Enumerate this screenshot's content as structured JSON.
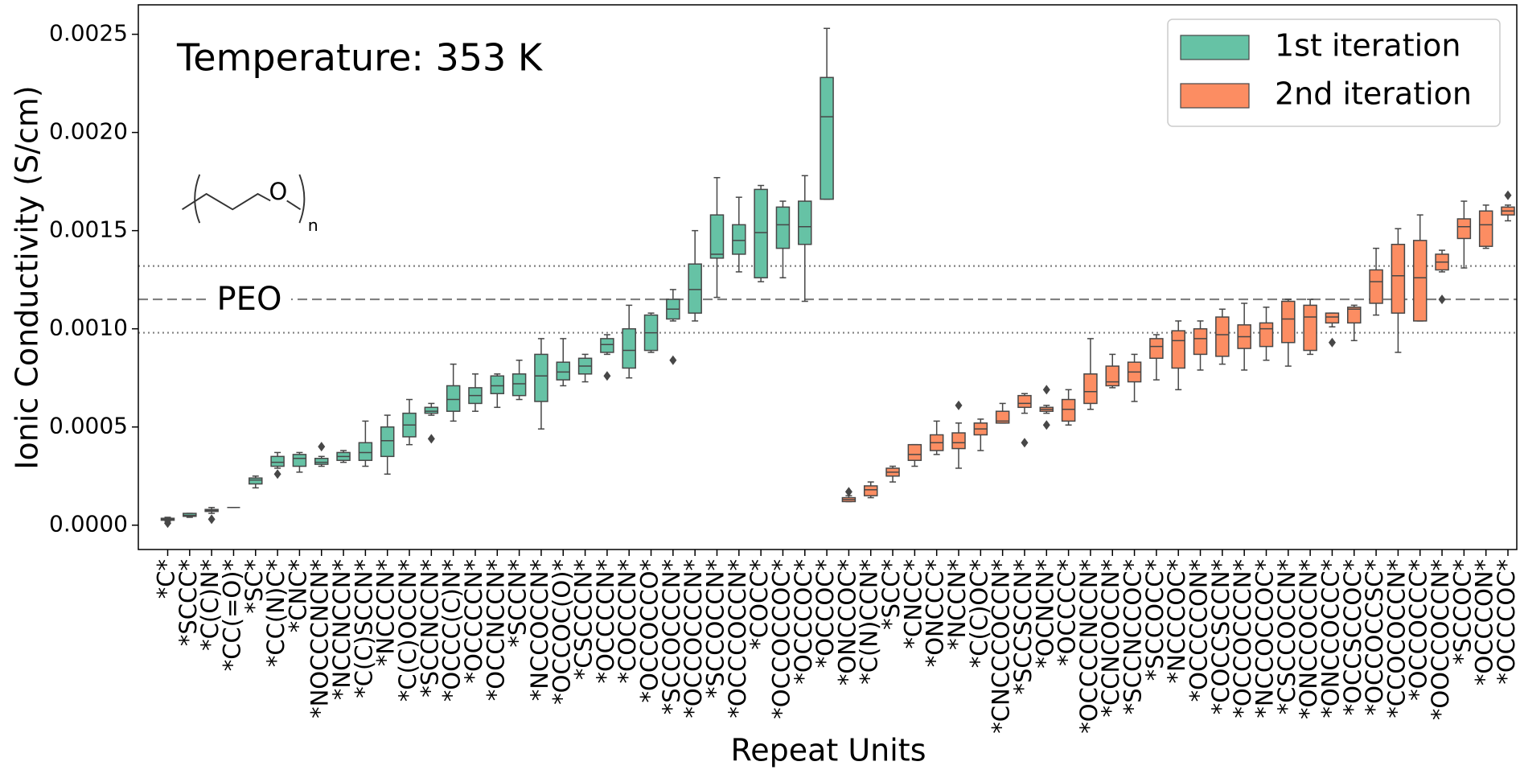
{
  "chart_data": {
    "type": "box",
    "title": "Temperature: 353 K",
    "x_label": "Repeat Units",
    "y_label": "Ionic Conductivity (S/cm)",
    "structure": {
      "atom": "O",
      "subscript": "n"
    },
    "categories": [
      "*C*",
      "*SCCC*",
      "*C(C)N*",
      "*CC(=O)*",
      "*SC*",
      "*CC(N)C*",
      "*CNC*",
      "*NOCCCNCN*",
      "*NCCNCCN*",
      "*C(C)SCCN*",
      "*NCCCN*",
      "*C(C)OCCN*",
      "*SCCNCCN*",
      "*OCCC(C)N*",
      "*OCCCCN*",
      "*OCCNCCN*",
      "*SCCN*",
      "*NCCOCCN*",
      "*OCCOC(O)*",
      "*CSCCCN*",
      "*OCCCCN*",
      "*COCCCN*",
      "*OCCOCCO*",
      "*SCCOCCCN*",
      "*OCCOCCCN*",
      "*SCCOCCN*",
      "*OCCCOCCN*",
      "*COCC*",
      "*OCCOCCOC*",
      "*OCCCOC*",
      "*OCCOC*",
      "*ONCCOC*",
      "*C(N)CCN*",
      "*SCC*",
      "*CNCC*",
      "*ONCCC*",
      "*NCCN*",
      "*C(C)OC*",
      "*CNCCCOCCN*",
      "*SCCSCCN*",
      "*OCNCN*",
      "*OCCCC*",
      "*OCCCCNCCN*",
      "*CCNCOCCN*",
      "*SCCNCCOC*",
      "*SCCOCC*",
      "*NCCCOC*",
      "*OCCCCON*",
      "*COCCSCCN*",
      "*OCCOCCCN*",
      "*NCCOCCOC*",
      "*CSCCOCCN*",
      "*ONCCOCCN*",
      "*ONCCOCCC*",
      "*OCCSCCOC*",
      "*OCCOCCSC*",
      "*CCOCOCCN*",
      "*OCCOCCC*",
      "*OOCCOCCN*",
      "*SCCOC*",
      "*OCCCON*",
      "*OCCCOC*"
    ],
    "series": [
      {
        "name": "1st iteration",
        "color": "#66c2a5",
        "min": [
          2e-05,
          4e-05,
          6e-05,
          9e-05,
          0.00019,
          0.00029,
          0.00027,
          0.0003,
          0.00032,
          0.0003,
          0.00026,
          0.00041,
          0.00056,
          0.00053,
          0.00058,
          0.0006,
          0.00064,
          0.00049,
          0.00071,
          0.00073,
          0.00087,
          0.00075,
          0.00088,
          0.00104,
          0.00104,
          0.00116,
          0.00129,
          0.00124,
          0.00126,
          0.00114,
          0.00166,
          null,
          null,
          null,
          null,
          null,
          null,
          null,
          null,
          null,
          null,
          null,
          null,
          null,
          null,
          null,
          null,
          null,
          null,
          null,
          null,
          null,
          null,
          null,
          null,
          null,
          null,
          null,
          null,
          null,
          null,
          null
        ],
        "q1": [
          2.5e-05,
          4.5e-05,
          7e-05,
          9e-05,
          0.00021,
          0.0003,
          0.0003,
          0.00031,
          0.00033,
          0.00033,
          0.00035,
          0.00045,
          0.00057,
          0.00058,
          0.00062,
          0.00067,
          0.00066,
          0.00063,
          0.00074,
          0.00077,
          0.00088,
          0.0008,
          0.00089,
          0.00105,
          0.00108,
          0.00136,
          0.00138,
          0.00126,
          0.00141,
          0.00143,
          0.00166,
          null,
          null,
          null,
          null,
          null,
          null,
          null,
          null,
          null,
          null,
          null,
          null,
          null,
          null,
          null,
          null,
          null,
          null,
          null,
          null,
          null,
          null,
          null,
          null,
          null,
          null,
          null,
          null,
          null,
          null,
          null
        ],
        "median": [
          3e-05,
          5e-05,
          7.5e-05,
          9e-05,
          0.00023,
          0.00032,
          0.00034,
          0.00032,
          0.00035,
          0.00037,
          0.00043,
          0.00051,
          0.00058,
          0.00064,
          0.00066,
          0.00071,
          0.00072,
          0.00076,
          0.00078,
          0.00081,
          0.00092,
          0.00089,
          0.00098,
          0.0011,
          0.0012,
          0.00138,
          0.00145,
          0.00149,
          0.00153,
          0.00152,
          0.00208,
          null,
          null,
          null,
          null,
          null,
          null,
          null,
          null,
          null,
          null,
          null,
          null,
          null,
          null,
          null,
          null,
          null,
          null,
          null,
          null,
          null,
          null,
          null,
          null,
          null,
          null,
          null,
          null,
          null,
          null,
          null
        ],
        "q3": [
          3.5e-05,
          6e-05,
          8e-05,
          9e-05,
          0.00024,
          0.00035,
          0.00036,
          0.00034,
          0.00037,
          0.00042,
          0.0005,
          0.00057,
          0.0006,
          0.00071,
          0.0007,
          0.00076,
          0.00077,
          0.00087,
          0.00083,
          0.00085,
          0.00095,
          0.001,
          0.00107,
          0.00115,
          0.00133,
          0.00158,
          0.00153,
          0.00171,
          0.00162,
          0.00165,
          0.00228,
          null,
          null,
          null,
          null,
          null,
          null,
          null,
          null,
          null,
          null,
          null,
          null,
          null,
          null,
          null,
          null,
          null,
          null,
          null,
          null,
          null,
          null,
          null,
          null,
          null,
          null,
          null,
          null,
          null,
          null,
          null
        ],
        "max": [
          4e-05,
          6e-05,
          9e-05,
          9e-05,
          0.00025,
          0.00037,
          0.00037,
          0.00035,
          0.00038,
          0.00053,
          0.00056,
          0.00064,
          0.00062,
          0.00082,
          0.00077,
          0.00077,
          0.00084,
          0.00095,
          0.00095,
          0.00087,
          0.00097,
          0.00112,
          0.00108,
          0.0012,
          0.0015,
          0.00177,
          0.00167,
          0.00173,
          0.00165,
          0.00178,
          0.00253,
          null,
          null,
          null,
          null,
          null,
          null,
          null,
          null,
          null,
          null,
          null,
          null,
          null,
          null,
          null,
          null,
          null,
          null,
          null,
          null,
          null,
          null,
          null,
          null,
          null,
          null,
          null,
          null,
          null,
          null,
          null
        ],
        "outliers": [
          [
            1e-05
          ],
          null,
          [
            3e-05
          ],
          null,
          null,
          [
            0.00026
          ],
          null,
          [
            0.0004
          ],
          null,
          null,
          null,
          null,
          [
            0.00044
          ],
          null,
          null,
          null,
          null,
          null,
          null,
          null,
          [
            0.00076
          ],
          null,
          null,
          [
            0.00084
          ],
          null,
          null,
          null,
          null,
          null,
          null,
          null,
          null,
          null,
          null,
          null,
          null,
          null,
          null,
          null,
          null,
          null,
          null,
          null,
          null,
          null,
          null,
          null,
          null,
          null,
          null,
          null,
          null,
          null,
          null,
          null,
          null,
          null,
          null,
          null,
          null,
          null,
          null
        ]
      },
      {
        "name": "2nd iteration",
        "color": "#fc8d62",
        "min": [
          null,
          null,
          null,
          null,
          null,
          null,
          null,
          null,
          null,
          null,
          null,
          null,
          null,
          null,
          null,
          null,
          null,
          null,
          null,
          null,
          null,
          null,
          null,
          null,
          null,
          null,
          null,
          null,
          null,
          null,
          null,
          0.00012,
          0.00014,
          0.00022,
          0.0003,
          0.00036,
          0.00029,
          0.00038,
          0.00052,
          0.00057,
          0.00057,
          0.00051,
          0.00059,
          0.0007,
          0.00063,
          0.00074,
          0.00069,
          0.00079,
          0.00082,
          0.00079,
          0.00084,
          0.00081,
          0.00087,
          0.00101,
          0.00094,
          0.00107,
          0.00088,
          0.00104,
          0.00129,
          0.00131,
          0.00141,
          0.00155
        ],
        "q1": [
          null,
          null,
          null,
          null,
          null,
          null,
          null,
          null,
          null,
          null,
          null,
          null,
          null,
          null,
          null,
          null,
          null,
          null,
          null,
          null,
          null,
          null,
          null,
          null,
          null,
          null,
          null,
          null,
          null,
          null,
          null,
          0.00012,
          0.00015,
          0.00025,
          0.00033,
          0.00038,
          0.00039,
          0.00046,
          0.00052,
          0.0006,
          0.00058,
          0.00053,
          0.00062,
          0.00071,
          0.00073,
          0.00085,
          0.0008,
          0.00087,
          0.00086,
          0.0009,
          0.00091,
          0.00093,
          0.00089,
          0.00103,
          0.00103,
          0.00113,
          0.00108,
          0.00104,
          0.0013,
          0.00146,
          0.00142,
          0.00158
        ],
        "median": [
          null,
          null,
          null,
          null,
          null,
          null,
          null,
          null,
          null,
          null,
          null,
          null,
          null,
          null,
          null,
          null,
          null,
          null,
          null,
          null,
          null,
          null,
          null,
          null,
          null,
          null,
          null,
          null,
          null,
          null,
          null,
          0.00013,
          0.00018,
          0.00027,
          0.00036,
          0.00042,
          0.00042,
          0.00049,
          0.00053,
          0.00062,
          0.00059,
          0.00059,
          0.00068,
          0.00073,
          0.00078,
          0.00091,
          0.00094,
          0.00095,
          0.00097,
          0.00096,
          0.001,
          0.00105,
          0.00106,
          0.00106,
          0.0011,
          0.00124,
          0.00127,
          0.00126,
          0.00134,
          0.00152,
          0.00153,
          0.0016
        ],
        "q3": [
          null,
          null,
          null,
          null,
          null,
          null,
          null,
          null,
          null,
          null,
          null,
          null,
          null,
          null,
          null,
          null,
          null,
          null,
          null,
          null,
          null,
          null,
          null,
          null,
          null,
          null,
          null,
          null,
          null,
          null,
          null,
          0.00014,
          0.0002,
          0.00029,
          0.00041,
          0.00046,
          0.00047,
          0.00052,
          0.00058,
          0.00066,
          0.0006,
          0.00064,
          0.00077,
          0.00081,
          0.00083,
          0.00095,
          0.00099,
          0.001,
          0.00106,
          0.00102,
          0.00103,
          0.00114,
          0.00112,
          0.00108,
          0.00111,
          0.0013,
          0.00143,
          0.00145,
          0.00138,
          0.00156,
          0.0016,
          0.00162
        ],
        "max": [
          null,
          null,
          null,
          null,
          null,
          null,
          null,
          null,
          null,
          null,
          null,
          null,
          null,
          null,
          null,
          null,
          null,
          null,
          null,
          null,
          null,
          null,
          null,
          null,
          null,
          null,
          null,
          null,
          null,
          null,
          null,
          0.00015,
          0.00022,
          0.0003,
          0.00041,
          0.00053,
          0.00052,
          0.00054,
          0.00062,
          0.00067,
          0.00061,
          0.00069,
          0.00095,
          0.00087,
          0.00087,
          0.00097,
          0.00104,
          0.00104,
          0.0011,
          0.00113,
          0.00111,
          0.00115,
          0.00115,
          0.00108,
          0.00112,
          0.00141,
          0.00151,
          0.00158,
          0.0014,
          0.00165,
          0.00163,
          0.00163
        ],
        "outliers": [
          null,
          null,
          null,
          null,
          null,
          null,
          null,
          null,
          null,
          null,
          null,
          null,
          null,
          null,
          null,
          null,
          null,
          null,
          null,
          null,
          null,
          null,
          null,
          null,
          null,
          null,
          null,
          null,
          null,
          null,
          null,
          [
            0.00017
          ],
          null,
          null,
          null,
          null,
          [
            0.00061
          ],
          null,
          null,
          [
            0.00042
          ],
          [
            0.00069,
            0.00051
          ],
          null,
          null,
          null,
          null,
          null,
          null,
          null,
          null,
          null,
          null,
          null,
          null,
          [
            0.00093
          ],
          null,
          null,
          null,
          null,
          [
            0.00115
          ],
          null,
          null,
          [
            0.00168
          ]
        ]
      }
    ],
    "reference_lines": [
      {
        "value": 0.00115,
        "style": "dashed",
        "label": "PEO"
      },
      {
        "value": 0.00132,
        "style": "dotted"
      },
      {
        "value": 0.00098,
        "style": "dotted"
      }
    ],
    "ylim": [
      -0.000124,
      0.00265
    ],
    "yticks": [
      {
        "value": 0,
        "label": "0.0000"
      },
      0.0005,
      {
        "value": 0.001,
        "label": "0.0010"
      },
      0.0015,
      {
        "value": 0.002,
        "label": "0.0020"
      },
      0.0025
    ],
    "legend": "upper right",
    "grid": false
  }
}
